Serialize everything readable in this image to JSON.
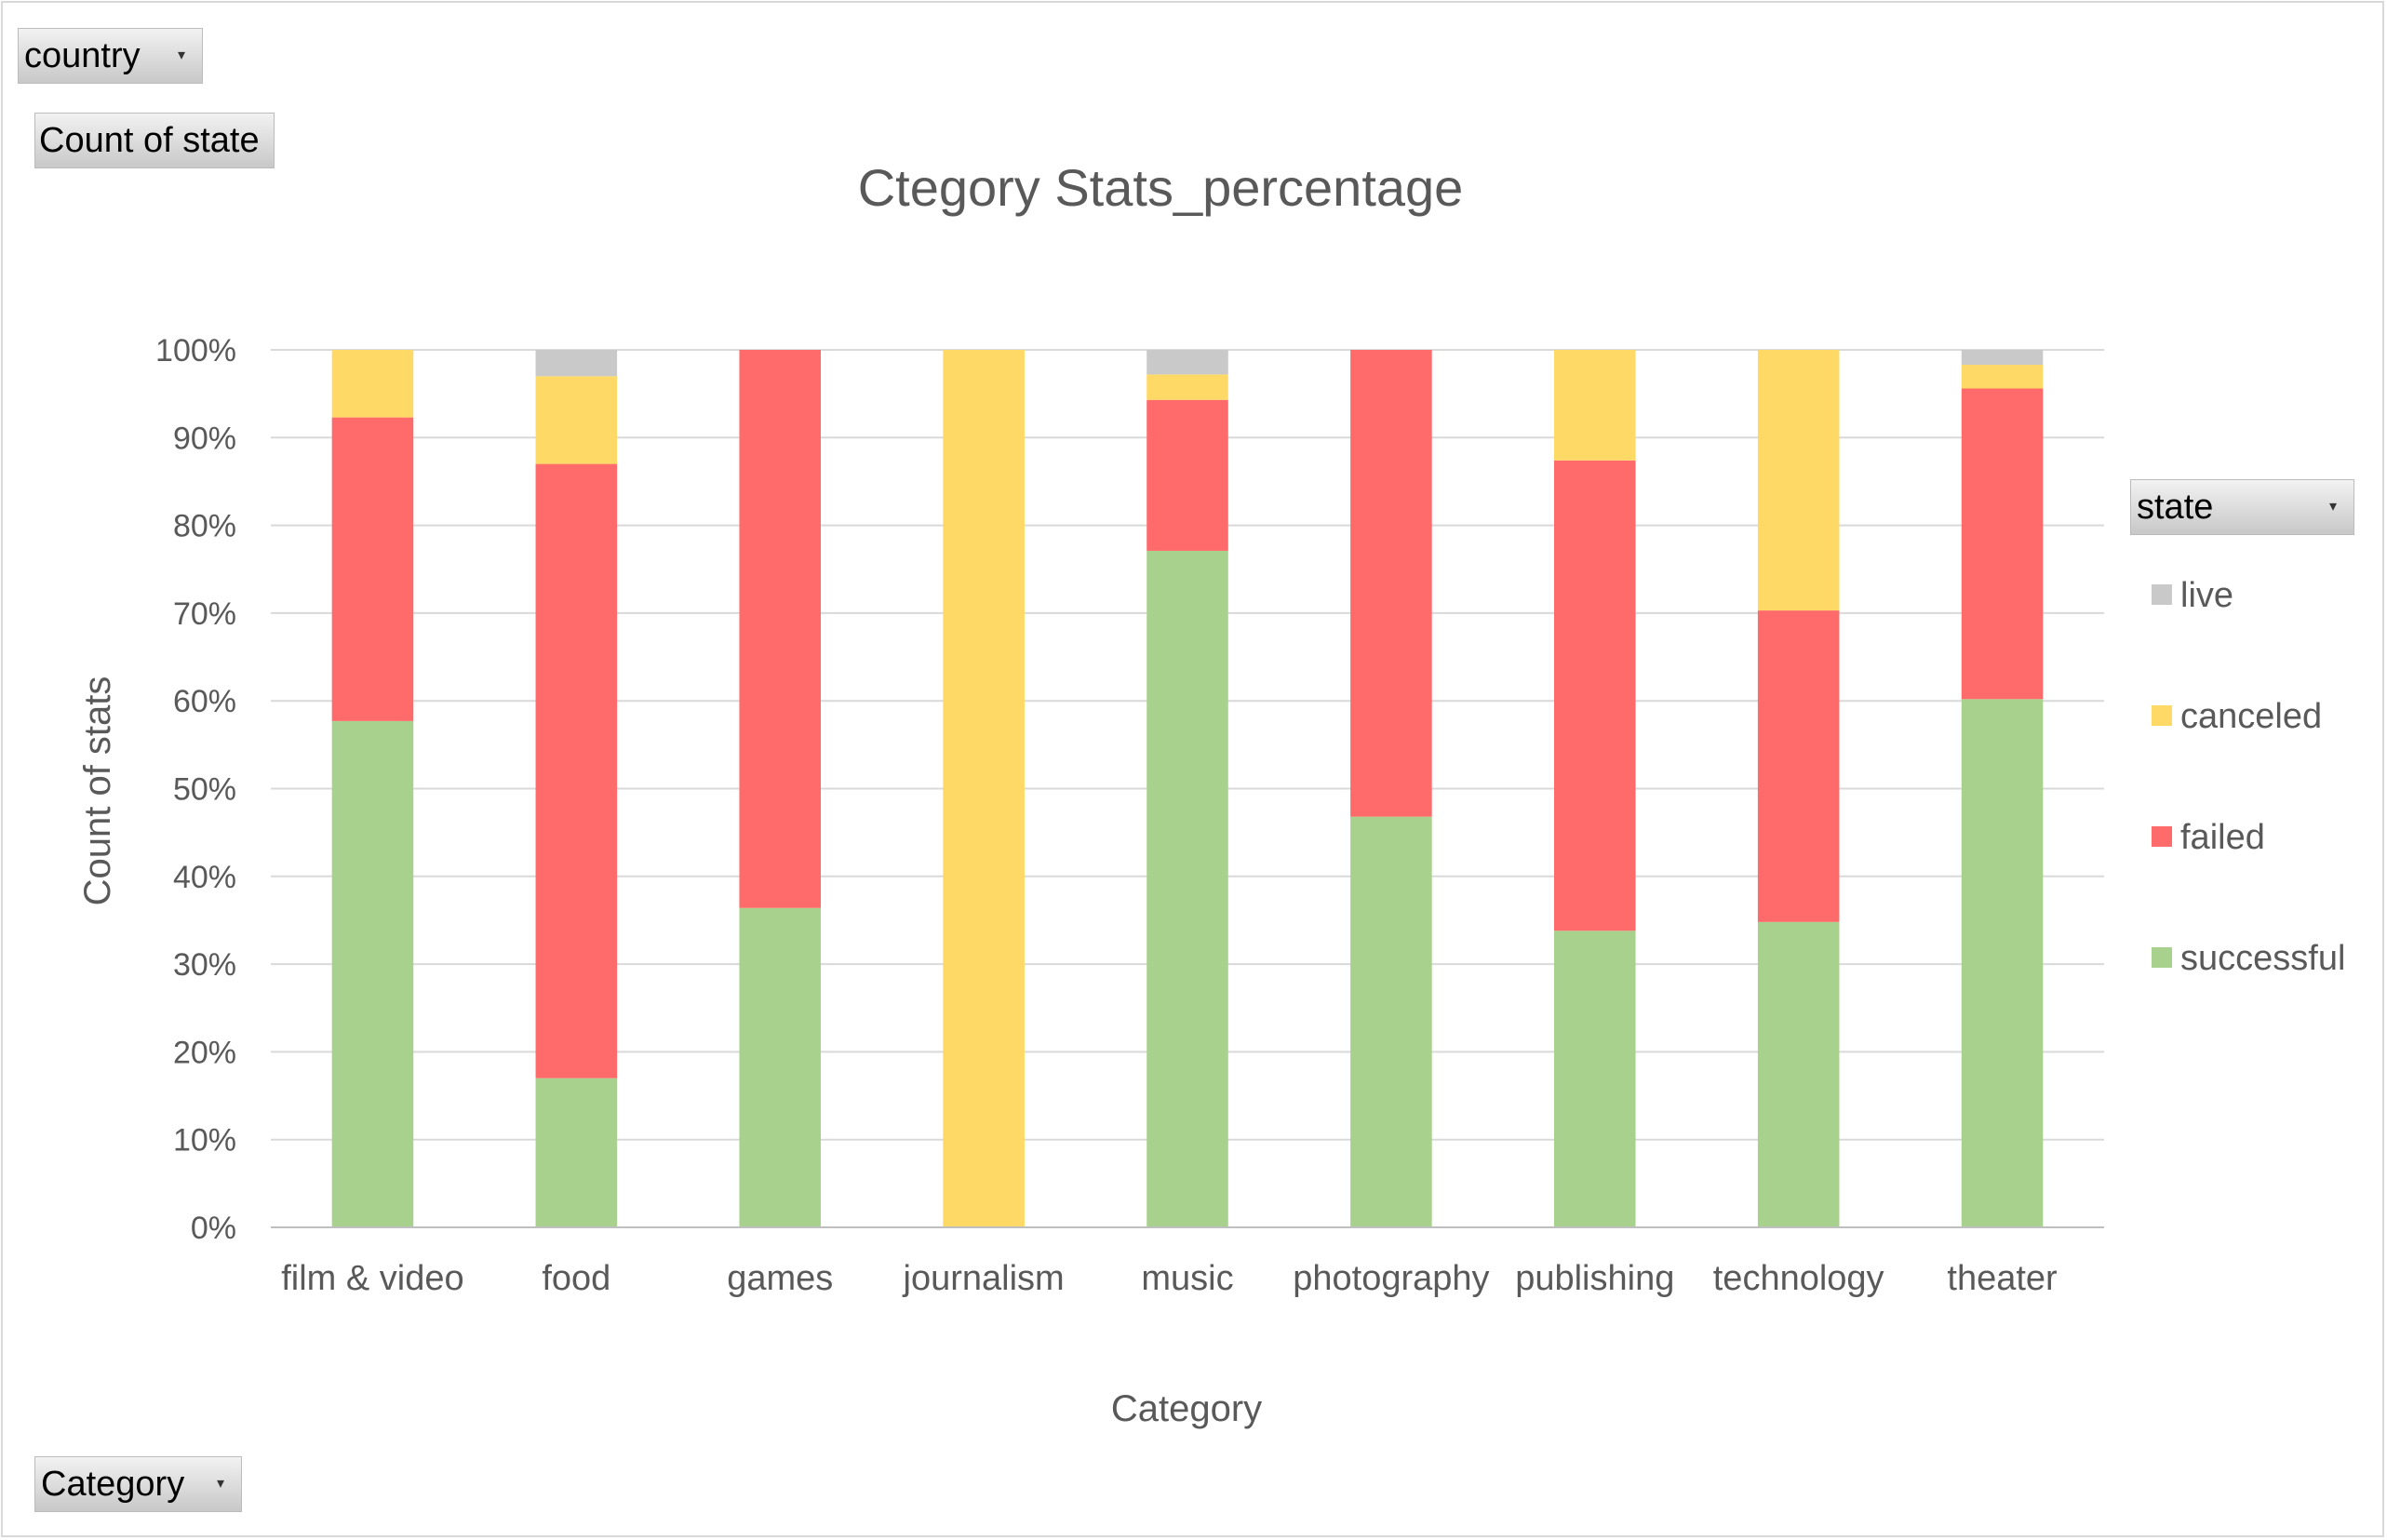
{
  "pivot": {
    "filter_label": "country",
    "values_label": "Count of state",
    "axis_label": "Category",
    "legend_label": "state"
  },
  "chart_data": {
    "type": "bar",
    "stacked": "percent",
    "title": "Ctegory Stats_percentage",
    "xlabel": "Category",
    "ylabel": "Count of stats",
    "ylim": [
      0,
      100
    ],
    "yticks": [
      "0%",
      "10%",
      "20%",
      "30%",
      "40%",
      "50%",
      "60%",
      "70%",
      "80%",
      "90%",
      "100%"
    ],
    "grid": true,
    "legend_position": "right",
    "categories": [
      "film & video",
      "food",
      "games",
      "journalism",
      "music",
      "photography",
      "publishing",
      "technology",
      "theater"
    ],
    "series": [
      {
        "name": "successful",
        "color": "#a9d18e",
        "values": [
          57.7,
          17.0,
          36.4,
          0.0,
          77.1,
          46.8,
          33.8,
          34.8,
          60.2
        ]
      },
      {
        "name": "failed",
        "color": "#ff6b6b",
        "values": [
          34.6,
          70.0,
          63.6,
          0.0,
          17.2,
          53.2,
          53.6,
          35.5,
          35.4
        ]
      },
      {
        "name": "canceled",
        "color": "#ffd966",
        "values": [
          7.7,
          10.0,
          0.0,
          100.0,
          2.9,
          0.0,
          12.6,
          29.7,
          2.7
        ]
      },
      {
        "name": "live",
        "color": "#c9c9c9",
        "values": [
          0.0,
          3.0,
          0.0,
          0.0,
          2.8,
          0.0,
          0.0,
          0.0,
          1.7
        ]
      }
    ]
  }
}
